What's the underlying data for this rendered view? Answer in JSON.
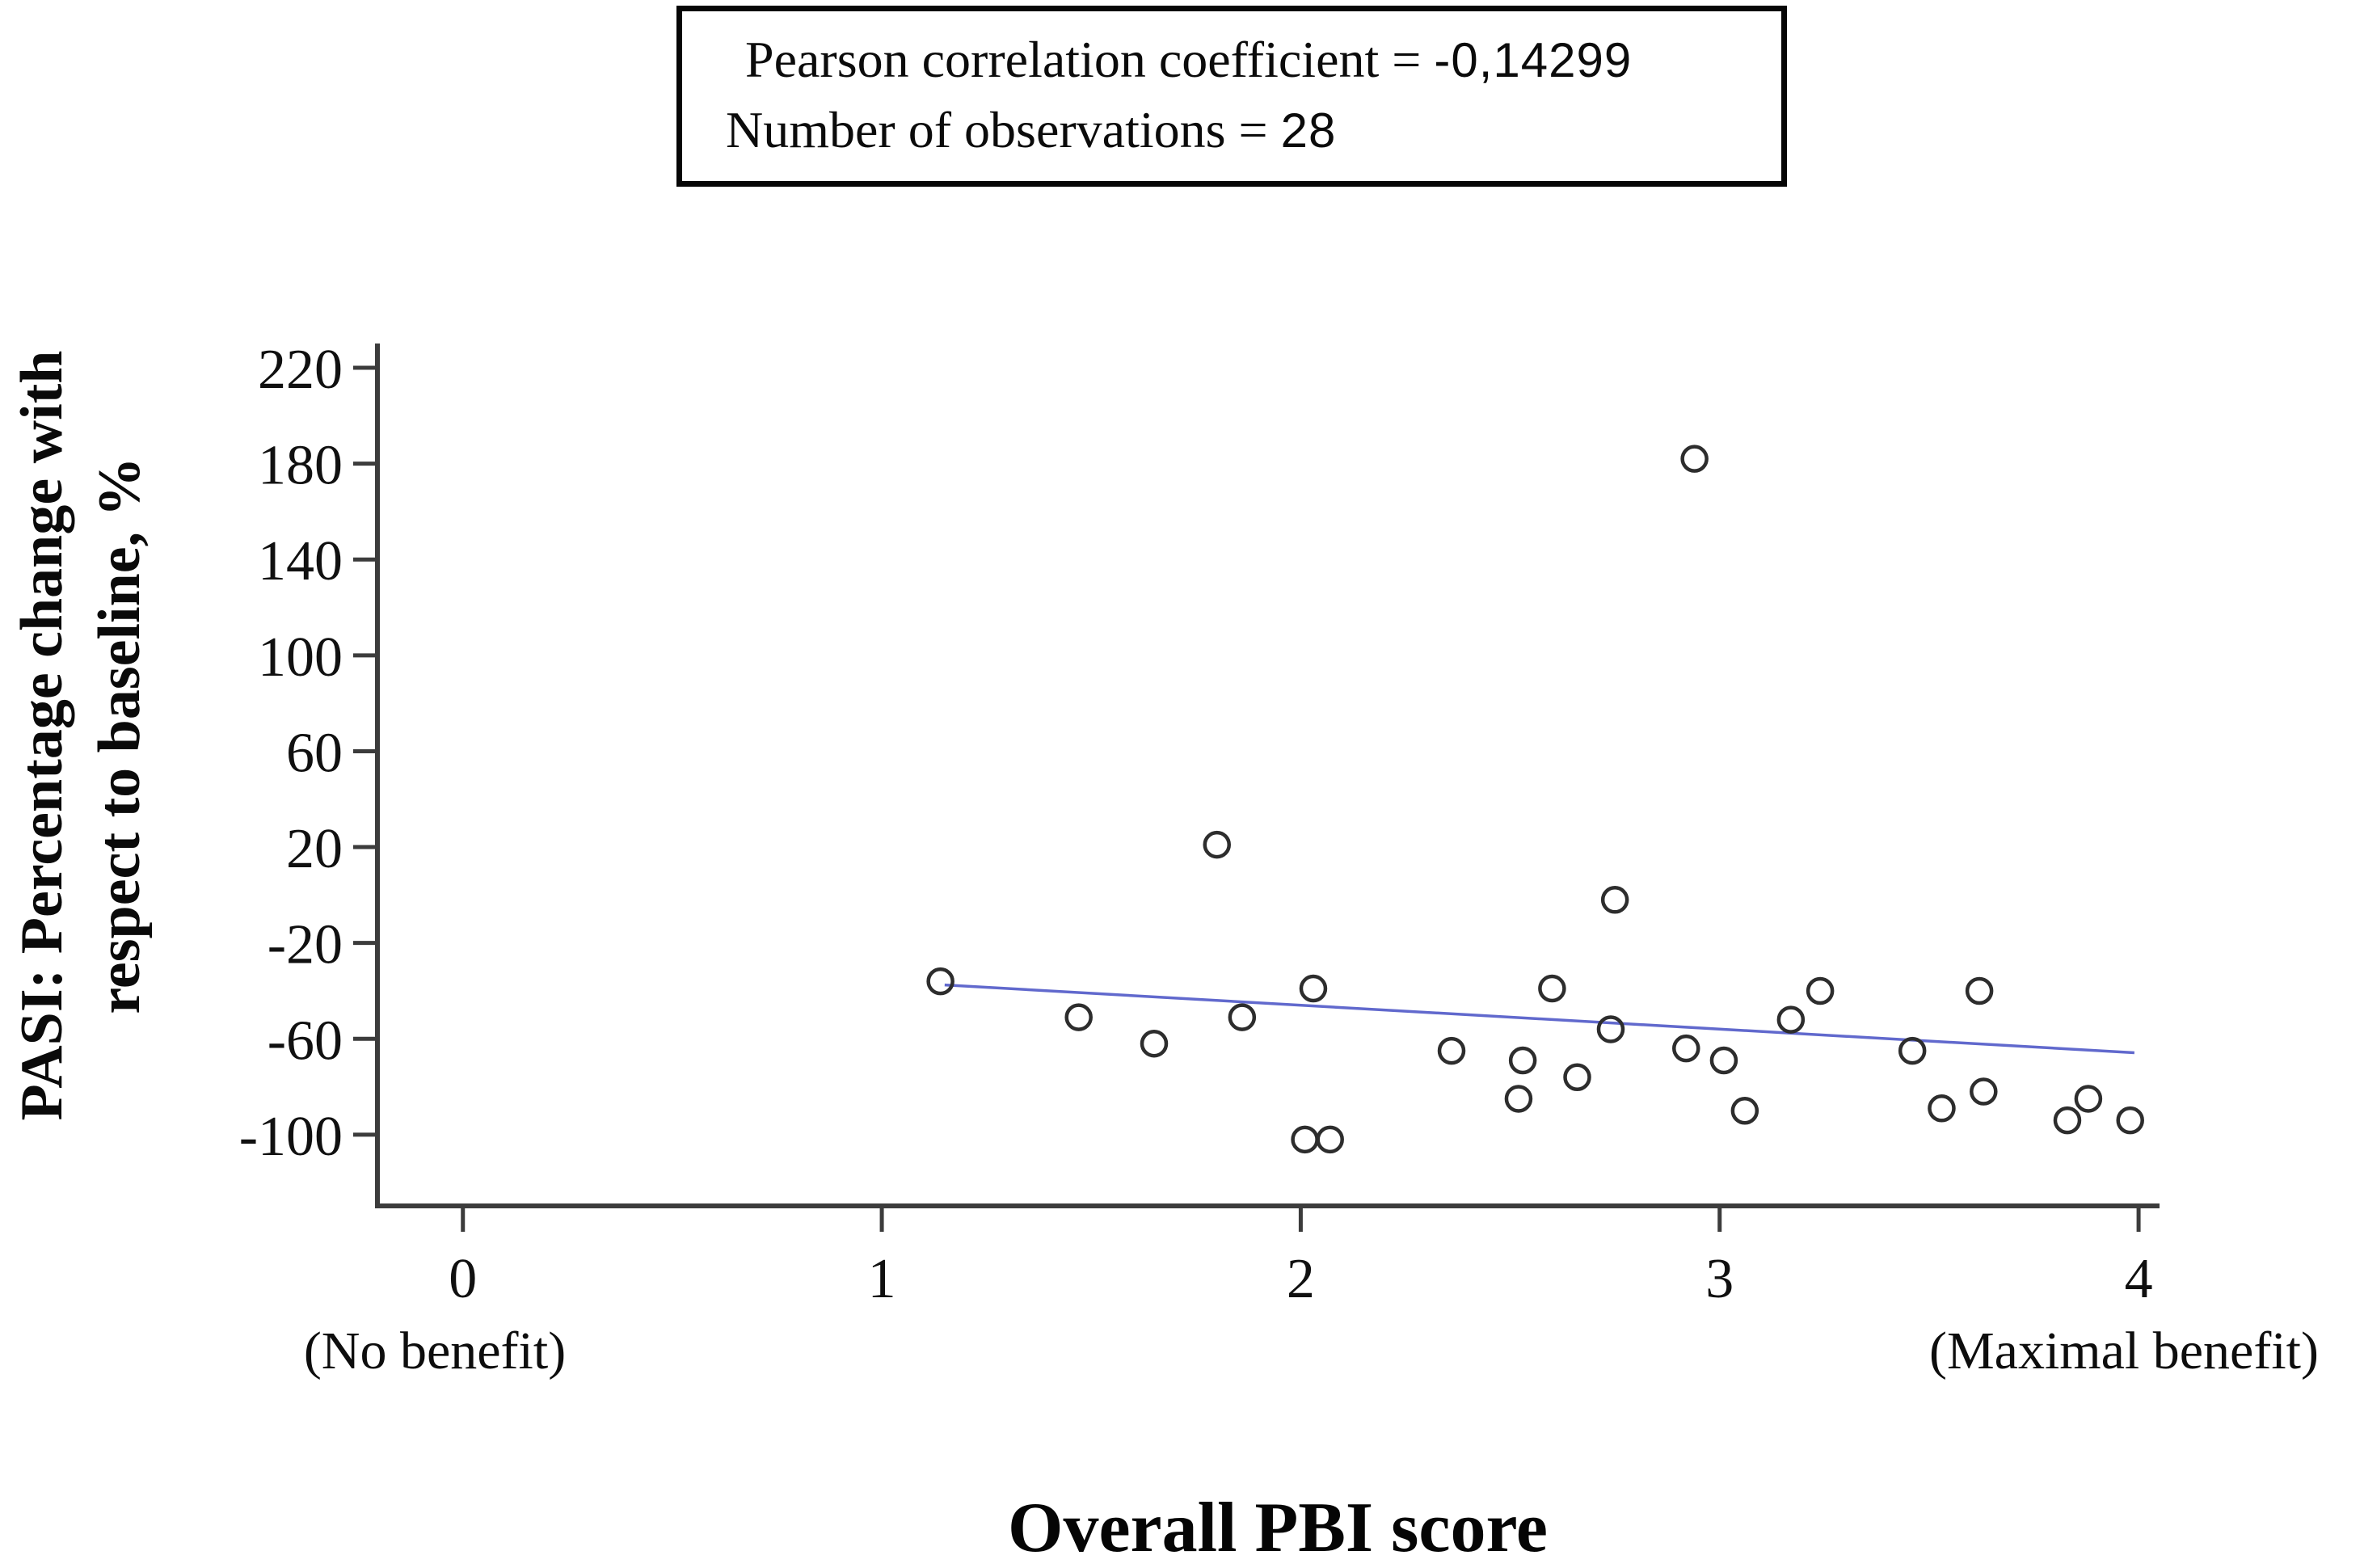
{
  "figure": {
    "stats_box": {
      "line1_label": "Pearson correlation coefficient =",
      "line1_value": "-0,14299",
      "line2_label": "Number of observations =",
      "line2_value": "28"
    }
  },
  "chart_data": {
    "type": "scatter",
    "title": "Overall PBI score",
    "xlabel": "Overall PBI score",
    "ylabel_lines": [
      "PASI: Percentage change with",
      "respect to baseline, %"
    ],
    "x_ticks": [
      0,
      1,
      2,
      3,
      4
    ],
    "y_ticks": [
      220,
      180,
      140,
      100,
      60,
      20,
      -20,
      -60,
      -100
    ],
    "x_axis_range": [
      -0.204,
      4.05
    ],
    "y_axis_range": [
      -129.7,
      230.1
    ],
    "x_annotations": {
      "no_benefit": "(No benefit)",
      "max_benefit": "(Maximal benefit)"
    },
    "grid": false,
    "legend_position": "none",
    "stats": {
      "pearson_correlation_coefficient": "-0,14299",
      "number_of_observations": 28
    },
    "points": [
      [
        1.14,
        -36
      ],
      [
        1.47,
        -51
      ],
      [
        1.65,
        -62
      ],
      [
        1.8,
        21
      ],
      [
        1.86,
        -51
      ],
      [
        2.01,
        -102
      ],
      [
        2.03,
        -39
      ],
      [
        2.07,
        -102
      ],
      [
        2.36,
        -65
      ],
      [
        2.52,
        -85
      ],
      [
        2.53,
        -69
      ],
      [
        2.6,
        -39
      ],
      [
        2.66,
        -76
      ],
      [
        2.74,
        -56
      ],
      [
        2.75,
        -2
      ],
      [
        2.92,
        -64
      ],
      [
        2.94,
        182
      ],
      [
        3.01,
        -69
      ],
      [
        3.06,
        -90
      ],
      [
        3.17,
        -52
      ],
      [
        3.24,
        -40
      ],
      [
        3.46,
        -65
      ],
      [
        3.53,
        -89
      ],
      [
        3.62,
        -40
      ],
      [
        3.63,
        -82
      ],
      [
        3.83,
        -94
      ],
      [
        3.88,
        -85
      ],
      [
        3.98,
        -94
      ]
    ],
    "trend_line": {
      "x1": 1.15,
      "y1": -37.5,
      "x2": 3.99,
      "y2": -65.8
    },
    "colors": {
      "trend": "#5059c8",
      "marker": "#2d2d2d",
      "axis": "#3c3c3c",
      "text": "#101010"
    }
  }
}
